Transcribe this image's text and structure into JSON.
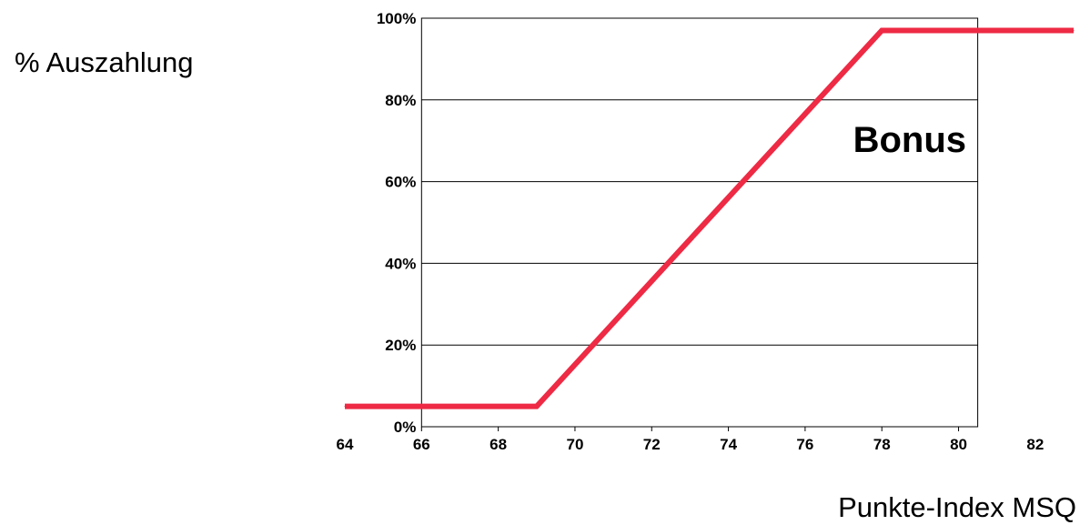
{
  "chart_data": {
    "type": "line",
    "ylabel": "% Auszahlung",
    "xlabel": "Punkte-Index MSQ",
    "annotation": "Bonus",
    "xlim": [
      64,
      83
    ],
    "ylim": [
      0,
      100
    ],
    "plot_xlim": [
      66,
      80.5
    ],
    "x_ticks": [
      64,
      66,
      68,
      70,
      72,
      74,
      76,
      78,
      80,
      82
    ],
    "y_ticks": [
      0,
      20,
      40,
      60,
      80,
      100
    ],
    "y_tick_labels": [
      "0%",
      "20%",
      "40%",
      "60%",
      "80%",
      "100%"
    ],
    "grid": true,
    "series": [
      {
        "color": "#ee2a44",
        "x": [
          64,
          69,
          78,
          83
        ],
        "y": [
          5,
          5,
          97,
          97
        ]
      }
    ]
  }
}
